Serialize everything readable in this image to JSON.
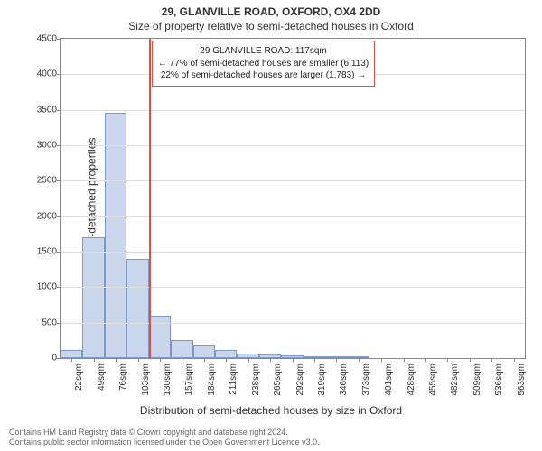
{
  "chart": {
    "type": "histogram",
    "title": "29, GLANVILLE ROAD, OXFORD, OX4 2DD",
    "subtitle": "Size of property relative to semi-detached houses in Oxford",
    "ylabel": "Number of semi-detached properties",
    "xlabel": "Distribution of semi-detached houses by size in Oxford",
    "footer_line1": "Contains HM Land Registry data © Crown copyright and database right 2024.",
    "footer_line2": "Contains public sector information licensed under the Open Government Licence v3.0.",
    "background_color": "#ffffff",
    "axis_color": "#888888",
    "grid_color": "#dddddd",
    "bar_fill": "#c9d6ec",
    "bar_stroke": "#7a98c9",
    "marker_color": "#e74c3c",
    "text_color": "#333333",
    "title_fontsize": 12,
    "label_fontsize": 12,
    "tick_fontsize": 10,
    "xlim": [
      8.5,
      576.5
    ],
    "ylim": [
      0,
      4500
    ],
    "ytick_step": 500,
    "bar_width_units": 27,
    "bars": [
      {
        "center": 22,
        "value": 120
      },
      {
        "center": 49,
        "value": 1700
      },
      {
        "center": 76,
        "value": 3460
      },
      {
        "center": 103,
        "value": 1400
      },
      {
        "center": 130,
        "value": 600
      },
      {
        "center": 157,
        "value": 250
      },
      {
        "center": 184,
        "value": 180
      },
      {
        "center": 211,
        "value": 110
      },
      {
        "center": 238,
        "value": 70
      },
      {
        "center": 265,
        "value": 50
      },
      {
        "center": 292,
        "value": 40
      },
      {
        "center": 319,
        "value": 30
      },
      {
        "center": 346,
        "value": 30
      },
      {
        "center": 373,
        "value": 25
      },
      {
        "center": 401,
        "value": 0
      },
      {
        "center": 428,
        "value": 0
      },
      {
        "center": 455,
        "value": 0
      },
      {
        "center": 482,
        "value": 0
      },
      {
        "center": 509,
        "value": 0
      },
      {
        "center": 536,
        "value": 0
      },
      {
        "center": 563,
        "value": 0
      }
    ],
    "xticks": [
      22,
      49,
      76,
      103,
      130,
      157,
      184,
      211,
      238,
      265,
      292,
      319,
      346,
      373,
      401,
      428,
      455,
      482,
      509,
      536,
      563
    ],
    "xtick_suffix": "sqm",
    "marker": {
      "x": 117
    },
    "annotation": {
      "line1": "29 GLANVILLE ROAD: 117sqm",
      "line2": "← 77% of semi-detached houses are smaller (6,113)",
      "line3": "22% of semi-detached houses are larger (1,783) →",
      "border_color": "#e74c3c",
      "left_units": 120,
      "top_value": 4470
    }
  }
}
